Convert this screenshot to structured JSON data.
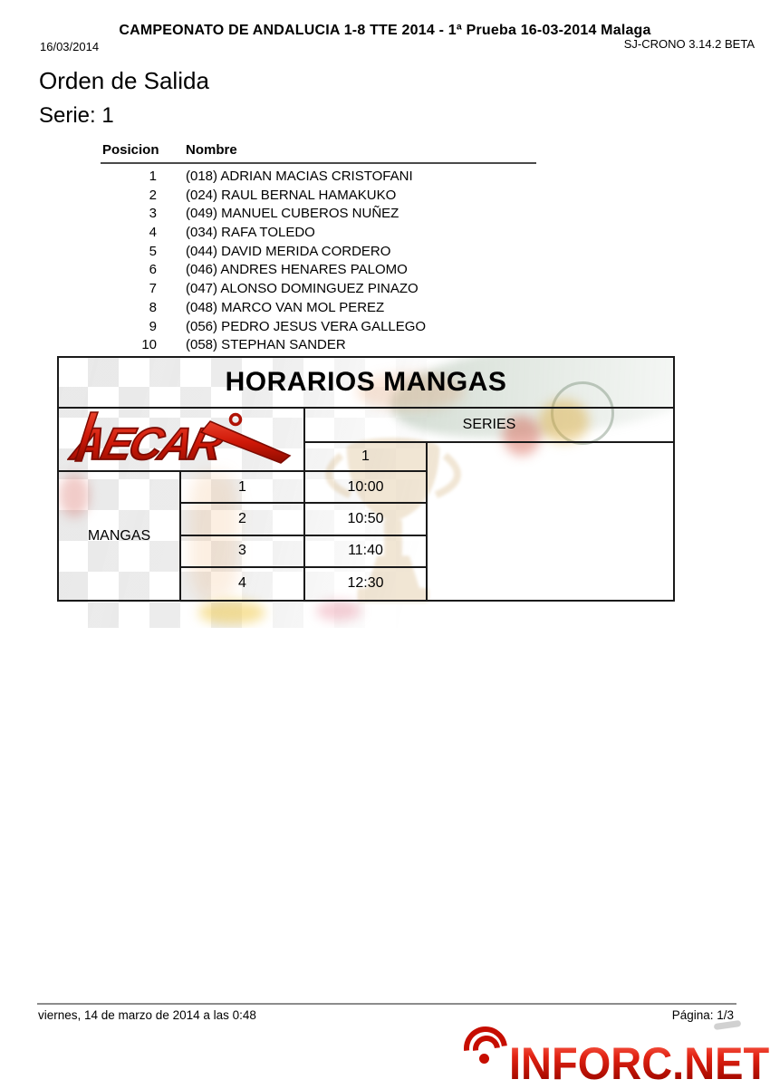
{
  "header": {
    "event_title": "CAMPEONATO DE ANDALUCIA 1-8 TTE 2014 - 1ª Prueba 16-03-2014 Malaga",
    "date": "16/03/2014",
    "software": "SJ-CRONO 3.14.2 BETA"
  },
  "document": {
    "title": "Orden de Salida",
    "serie": "Serie: 1"
  },
  "start_list": {
    "columns": {
      "position": "Posicion",
      "name": "Nombre"
    },
    "rows": [
      {
        "position": "1",
        "name": "(018) ADRIAN MACIAS CRISTOFANI"
      },
      {
        "position": "2",
        "name": "(024) RAUL BERNAL HAMAKUKO"
      },
      {
        "position": "3",
        "name": "(049) MANUEL CUBEROS NUÑEZ"
      },
      {
        "position": "4",
        "name": "(034) RAFA TOLEDO"
      },
      {
        "position": "5",
        "name": "(044) DAVID MERIDA CORDERO"
      },
      {
        "position": "6",
        "name": "(046) ANDRES HENARES PALOMO"
      },
      {
        "position": "7",
        "name": "(047) ALONSO DOMINGUEZ PINAZO"
      },
      {
        "position": "8",
        "name": "(048) MARCO VAN MOL PEREZ"
      },
      {
        "position": "9",
        "name": "(056) PEDRO JESUS VERA GALLEGO"
      },
      {
        "position": "10",
        "name": "(058) STEPHAN SANDER"
      }
    ]
  },
  "horarios": {
    "title": "HORARIOS MANGAS",
    "series_header": "SERIES",
    "series_number": "1",
    "group_label": "MANGAS",
    "aecar_logo_text": "AECAR",
    "schedule": [
      {
        "manga": "1",
        "time": "10:00"
      },
      {
        "manga": "2",
        "time": "10:50"
      },
      {
        "manga": "3",
        "time": "11:40"
      },
      {
        "manga": "4",
        "time": "12:30"
      }
    ]
  },
  "footer": {
    "generated": "viernes, 14 de marzo de 2014 a las 0:48",
    "page": "Página: 1/3"
  },
  "branding": {
    "watermark": "INFORC.NET"
  },
  "colors": {
    "aecar_red": "#cf1808",
    "inforc_red": "#c60d00",
    "table_border": "#1a1a1a",
    "footer_line": "#8c8c8c"
  }
}
